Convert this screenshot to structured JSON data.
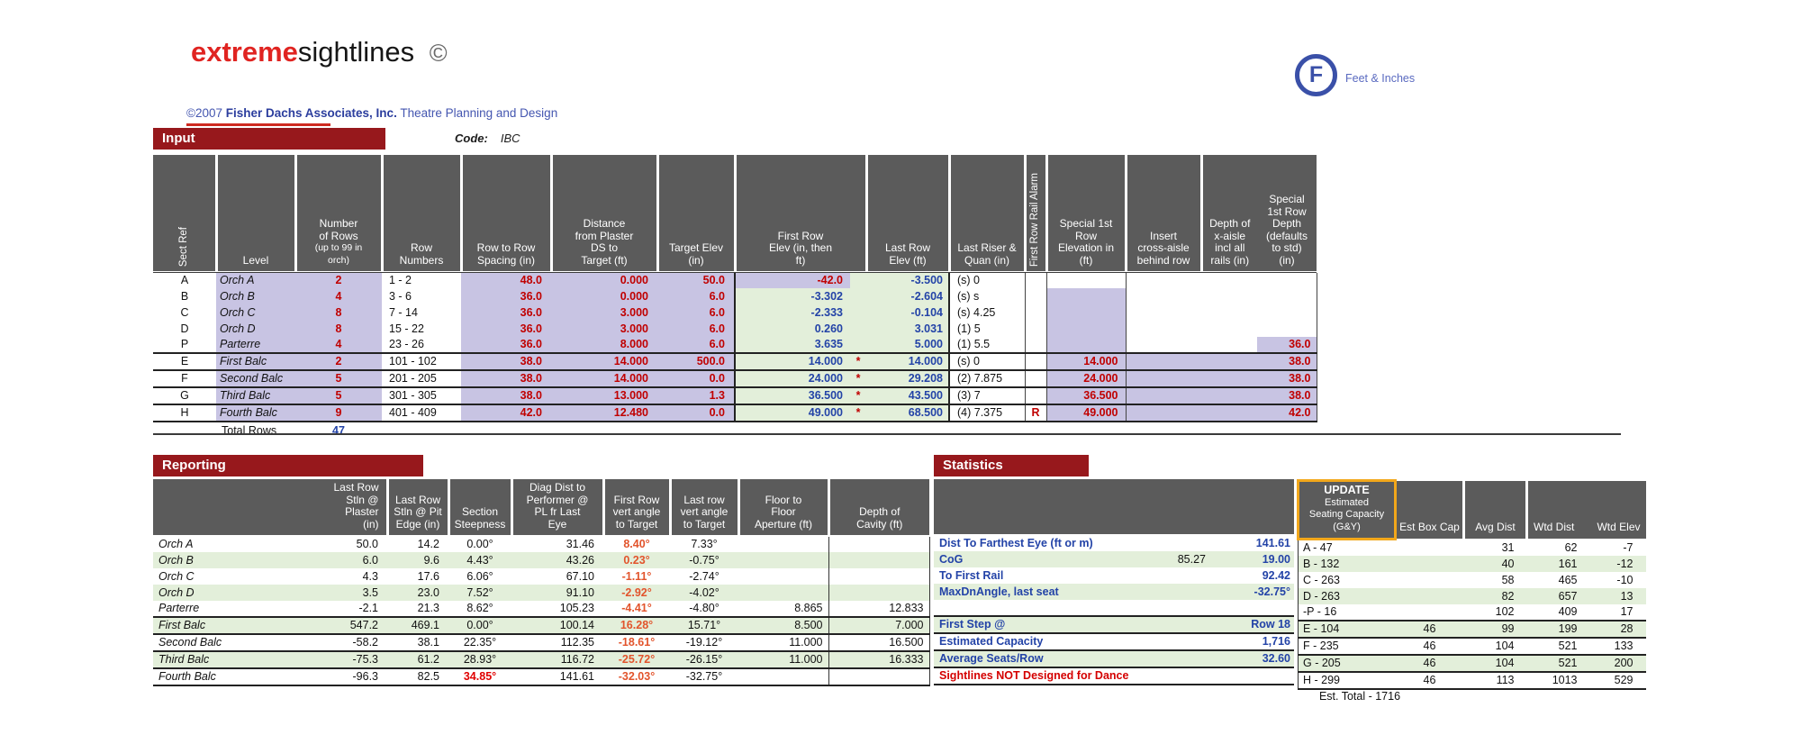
{
  "brand": {
    "title_red": "extreme",
    "title_black": "sightlines",
    "title_copy": "©",
    "copyright_prefix": "©2007 ",
    "company": "Fisher Dachs Associates, Inc.",
    "tagline": " Theatre Planning and Design"
  },
  "logo": {
    "letter": "F",
    "label": "Feet & Inches"
  },
  "colors": {
    "band_red": "#97181C",
    "header_grey": "#5B5B5B",
    "input_lavender": "#C8C4E3",
    "computed_green": "#E3EFDA",
    "value_red": "#C00000",
    "value_blue": "#2343A7",
    "angle_orange": "#E2542C",
    "update_border_orange": "#F2A71B",
    "logo_blue": "#3A50A8"
  },
  "input": {
    "band": "Input",
    "code_label": "Code:",
    "code_value": "IBC",
    "headers": {
      "sect": "Sect Ref",
      "level": "Level",
      "num_main": "Number\nof Rows",
      "num_sub": "(up to 99 in\norch)",
      "rownum": "Row\nNumbers",
      "spacing": "Row to Row\nSpacing (in)",
      "dist": "Distance\nfrom Plaster\nDS to\nTarget (ft)",
      "target": "Target Elev\n(in)",
      "firstElev": "First Row\nElev (in, then\nft)",
      "lastElev": "Last Row\nElev (ft)",
      "riser": "Last  Riser &\nQuan (in)",
      "alarm": "First Row Rail Alarm",
      "specElev": "Special 1st\nRow\nElevation in\n(ft)",
      "insert": "Insert\ncross-aisle\nbehind row",
      "depthx": "Depth of\nx-aisle\nincl all\nrails (in)",
      "specDepth": "Special\n1st Row\nDepth\n(defaults\nto std)\n(in)"
    },
    "rows": [
      {
        "cls": "rowA",
        "sect": "A",
        "level": "Orch A",
        "num": "2",
        "rownum": "1 - 2",
        "spacing": "48.0",
        "dist": "0.000",
        "target": "50.0",
        "firstElev": "-42.0",
        "star": "",
        "lastElev": "-3.500",
        "riser": "(s) 0",
        "alarm": "",
        "specElev": "",
        "insert": "",
        "depthx": "",
        "specDepth": ""
      },
      {
        "cls": "lav",
        "sect": "B",
        "level": "Orch B",
        "num": "4",
        "rownum": "3 - 6",
        "spacing": "36.0",
        "dist": "0.000",
        "target": "6.0",
        "firstElev": "-3.302",
        "star": "",
        "lastElev": "-2.604",
        "riser": "(s) s",
        "alarm": "",
        "specElev": "",
        "insert": "",
        "depthx": "",
        "specDepth": ""
      },
      {
        "cls": "lav",
        "sect": "C",
        "level": "Orch C",
        "num": "8",
        "rownum": "7 - 14",
        "spacing": "36.0",
        "dist": "3.000",
        "target": "6.0",
        "firstElev": "-2.333",
        "star": "",
        "lastElev": "-0.104",
        "riser": "(s) 4.25",
        "alarm": "",
        "specElev": "",
        "insert": "",
        "depthx": "",
        "specDepth": ""
      },
      {
        "cls": "lav",
        "sect": "D",
        "level": "Orch D",
        "num": "8",
        "rownum": "15 - 22",
        "spacing": "36.0",
        "dist": "3.000",
        "target": "6.0",
        "firstElev": "0.260",
        "star": "",
        "lastElev": "3.031",
        "riser": "(1) 5",
        "alarm": "",
        "specElev": "",
        "insert": "",
        "depthx": "",
        "specDepth": ""
      },
      {
        "cls": "lav rowP",
        "sect": "P",
        "level": "Parterre",
        "num": "4",
        "rownum": "23 - 26",
        "spacing": "36.0",
        "dist": "8.000",
        "target": "6.0",
        "firstElev": "3.635",
        "star": "",
        "lastElev": "5.000",
        "riser": "(1) 5.5",
        "alarm": "",
        "specElev": "",
        "insert": "",
        "depthx": "",
        "specDepth": "36.0"
      },
      {
        "cls": "balc",
        "sect": "E",
        "level": "First Balc",
        "num": "2",
        "rownum": "101 - 102",
        "spacing": "38.0",
        "dist": "14.000",
        "target": "500.0",
        "firstElev": "14.000",
        "star": "*",
        "lastElev": "14.000",
        "riser": "(s) 0",
        "alarm": "",
        "specElev": "14.000",
        "insert": "",
        "depthx": "",
        "specDepth": "38.0"
      },
      {
        "cls": "balc",
        "sect": "F",
        "level": "Second Balc",
        "num": "5",
        "rownum": "201 - 205",
        "spacing": "38.0",
        "dist": "14.000",
        "target": "0.0",
        "firstElev": "24.000",
        "star": "*",
        "lastElev": "29.208",
        "riser": "(2) 7.875",
        "alarm": "",
        "specElev": "24.000",
        "insert": "",
        "depthx": "",
        "specDepth": "38.0"
      },
      {
        "cls": "balc",
        "sect": "G",
        "level": "Third Balc",
        "num": "5",
        "rownum": "301 - 305",
        "spacing": "38.0",
        "dist": "13.000",
        "target": "1.3",
        "firstElev": "36.500",
        "star": "*",
        "lastElev": "43.500",
        "riser": "(3) 7",
        "alarm": "",
        "specElev": "36.500",
        "insert": "",
        "depthx": "",
        "specDepth": "38.0"
      },
      {
        "cls": "balc rowH",
        "sect": "H",
        "level": "Fourth Balc",
        "num": "9",
        "rownum": "401 - 409",
        "spacing": "42.0",
        "dist": "12.480",
        "target": "0.0",
        "firstElev": "49.000",
        "star": "*",
        "lastElev": "68.500",
        "riser": "(4) 7.375",
        "alarm": "R",
        "specElev": "49.000",
        "insert": "",
        "depthx": "",
        "specDepth": "42.0"
      }
    ],
    "total_label": "Total Rows",
    "total_value": "47"
  },
  "reporting": {
    "band": "Reporting",
    "headers": {
      "plaster": "Last Row\nStln @\nPlaster\n(in)",
      "pit": "Last Row\nStln @ Pit\nEdge (in)",
      "steep": "Section\nSteepness",
      "diag": "Diag Dist to\nPerformer @\nPL fr Last\nEye",
      "fa": "First Row\nvert angle\nto Target",
      "la": "Last row\nvert angle\nto Target",
      "floor": "Floor to\nFloor\nAperture (ft)",
      "cavity": "Depth of\nCavity (ft)"
    },
    "rows": [
      {
        "cls": "",
        "level": "Orch A",
        "plaster": "50.0",
        "pit": "14.2",
        "steep": "0.00°",
        "diag": "31.46",
        "fa": "8.40°",
        "la": "7.33°",
        "floor": "",
        "cavity": ""
      },
      {
        "cls": "g",
        "level": "Orch B",
        "plaster": "6.0",
        "pit": "9.6",
        "steep": "4.43°",
        "diag": "43.26",
        "fa": "0.23°",
        "la": "-0.75°",
        "floor": "",
        "cavity": ""
      },
      {
        "cls": "",
        "level": "Orch C",
        "plaster": "4.3",
        "pit": "17.6",
        "steep": "6.06°",
        "diag": "67.10",
        "fa": "-1.11°",
        "la": "-2.74°",
        "floor": "",
        "cavity": ""
      },
      {
        "cls": "g",
        "level": "Orch D",
        "plaster": "3.5",
        "pit": "23.0",
        "steep": "7.52°",
        "diag": "91.10",
        "fa": "-2.92°",
        "la": "-4.02°",
        "floor": "",
        "cavity": ""
      },
      {
        "cls": "",
        "level": "Parterre",
        "plaster": "-2.1",
        "pit": "21.3",
        "steep": "8.62°",
        "diag": "105.23",
        "fa": "-4.41°",
        "la": "-4.80°",
        "floor": "8.865",
        "cavity": "12.833"
      },
      {
        "cls": "g balc",
        "level": "First Balc",
        "plaster": "547.2",
        "pit": "469.1",
        "steep": "0.00°",
        "diag": "100.14",
        "fa": "16.28°",
        "la": "15.71°",
        "floor": "8.500",
        "cavity": "7.000"
      },
      {
        "cls": "balc",
        "level": "Second Balc",
        "plaster": "-58.2",
        "pit": "38.1",
        "steep": "22.35°",
        "diag": "112.35",
        "fa": "-18.61°",
        "la": "-19.12°",
        "floor": "11.000",
        "cavity": "16.500"
      },
      {
        "cls": "g balc",
        "level": "Third Balc",
        "plaster": "-75.3",
        "pit": "61.2",
        "steep": "28.93°",
        "diag": "116.72",
        "fa": "-25.72°",
        "la": "-26.15°",
        "floor": "11.000",
        "cavity": "16.333"
      },
      {
        "cls": "balc lastrow steepAlert",
        "level": "Fourth Balc",
        "plaster": "-96.3",
        "pit": "82.5",
        "steep": "34.85°",
        "diag": "141.61",
        "fa": "-32.03°",
        "la": "-32.75°",
        "floor": "",
        "cavity": ""
      }
    ]
  },
  "statistics": {
    "band": "Statistics",
    "update_header": {
      "line1": "UPDATE",
      "line2": "Estimated\nSeating Capacity\n(G&Y)"
    },
    "col_headers": {
      "box": "Est Box Cap",
      "avg": "Avg Dist",
      "wtd": "Wtd Dist",
      "welev": "Wtd Elev"
    },
    "left_rows": [
      {
        "cls": "",
        "label": "Dist To Farthest Eye (ft or m)",
        "mid": "",
        "val": "141.61"
      },
      {
        "cls": "g",
        "label": "CoG",
        "mid": "85.27",
        "val": "19.00"
      },
      {
        "cls": "",
        "label": "To First Rail",
        "mid": "",
        "val": "92.42"
      },
      {
        "cls": "g",
        "label": "MaxDnAngle, last seat",
        "mid": "",
        "val": "-32.75°"
      },
      {
        "cls": "",
        "label": "",
        "mid": "",
        "val": ""
      },
      {
        "cls": "g balc",
        "label": "First Step @",
        "mid": "",
        "val": "Row 18"
      },
      {
        "cls": "balc",
        "label": "Estimated Capacity",
        "mid": "",
        "val": "1,716"
      },
      {
        "cls": "g balc",
        "label": "Average Seats/Row",
        "mid": "",
        "val": "32.60"
      },
      {
        "cls": "balc lastrow alert",
        "label": "Sightlines NOT Designed for Dance",
        "mid": "",
        "val": ""
      }
    ],
    "right_rows": [
      {
        "cls": "",
        "cap": "A - 47",
        "box": "",
        "avg": "31",
        "wtd": "62",
        "welev": "-7"
      },
      {
        "cls": "g",
        "cap": "B - 132",
        "box": "",
        "avg": "40",
        "wtd": "161",
        "welev": "-12"
      },
      {
        "cls": "",
        "cap": "C - 263",
        "box": "",
        "avg": "58",
        "wtd": "465",
        "welev": "-10"
      },
      {
        "cls": "g",
        "cap": "D - 263",
        "box": "",
        "avg": "82",
        "wtd": "657",
        "welev": "13"
      },
      {
        "cls": "",
        "cap": "-P - 16",
        "box": "",
        "avg": "102",
        "wtd": "409",
        "welev": "17"
      },
      {
        "cls": "g balc",
        "cap": "E - 104",
        "box": "46",
        "avg": "99",
        "wtd": "199",
        "welev": "28"
      },
      {
        "cls": "balc",
        "cap": "F - 235",
        "box": "46",
        "avg": "104",
        "wtd": "521",
        "welev": "133"
      },
      {
        "cls": "g balc",
        "cap": "G - 205",
        "box": "46",
        "avg": "104",
        "wtd": "521",
        "welev": "200"
      },
      {
        "cls": "balc lastrow",
        "cap": "H - 299",
        "box": "46",
        "avg": "113",
        "wtd": "1013",
        "welev": "529"
      }
    ],
    "est_total": "Est. Total - 1716"
  }
}
